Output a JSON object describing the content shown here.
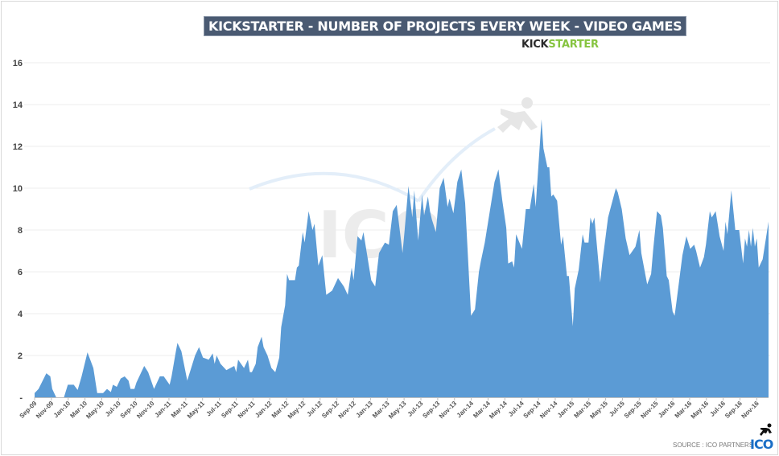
{
  "title": "KICKSTARTER - NUMBER OF PROJECTS EVERY WEEK - VIDEO GAMES",
  "logo": {
    "part1": "KICK",
    "part2": "STARTER"
  },
  "source": "SOURCE : ICO PARTNERS",
  "source_logo": "ICO",
  "watermark": "ICO",
  "colors": {
    "area": "#5b9bd5",
    "title_bg": "#4a5a72",
    "kick_green": "#86c440",
    "ico_blue": "#1b6fc6"
  },
  "chart_data": {
    "type": "area",
    "title": "KICKSTARTER - NUMBER OF PROJECTS EVERY WEEK - VIDEO GAMES",
    "xlabel": "",
    "ylabel": "",
    "x_unit": "weeks since Sep-09",
    "ylim": [
      0,
      16
    ],
    "xlim": [
      0,
      375
    ],
    "y_ticks": [
      {
        "v": 0,
        "label": "-"
      },
      {
        "v": 2,
        "label": "2"
      },
      {
        "v": 4,
        "label": "4"
      },
      {
        "v": 6,
        "label": "6"
      },
      {
        "v": 8,
        "label": "8"
      },
      {
        "v": 10,
        "label": "10"
      },
      {
        "v": 12,
        "label": "12"
      },
      {
        "v": 14,
        "label": "14"
      },
      {
        "v": 16,
        "label": "16"
      }
    ],
    "x_tick_labels": [
      "Sep-09",
      "Nov-09",
      "Jan-10",
      "Mar-10",
      "May-10",
      "Jul-10",
      "Sep-10",
      "Nov-10",
      "Jan-11",
      "Mar-11",
      "May-11",
      "Jul-11",
      "Sep-11",
      "Nov-11",
      "Jan-12",
      "Mar-12",
      "May-12",
      "Jul-12",
      "Sep-12",
      "Nov-12",
      "Jan-13",
      "Mar-13",
      "May-13",
      "Jul-13",
      "Sep-13",
      "Nov-13",
      "Jan-14",
      "Mar-14",
      "May-14",
      "Jul-14",
      "Sep-14",
      "Nov-14",
      "Jan-15",
      "Mar-15",
      "May-15",
      "Jul-15",
      "Sep-15",
      "Nov-15",
      "Jan-16",
      "Mar-16",
      "May-16",
      "Jul-16",
      "Sep-16",
      "Nov-16"
    ],
    "grid": true,
    "legend": "none",
    "series": [
      {
        "name": "Video game projects per week",
        "points": [
          [
            0,
            0.2
          ],
          [
            2,
            0.4
          ],
          [
            6,
            1.15
          ],
          [
            8,
            1.0
          ],
          [
            9,
            0.4
          ],
          [
            11,
            0
          ],
          [
            15,
            0
          ],
          [
            17,
            0.6
          ],
          [
            20,
            0.6
          ],
          [
            22,
            0.35
          ],
          [
            24,
            1.0
          ],
          [
            27,
            2.15
          ],
          [
            30,
            1.4
          ],
          [
            32,
            0.2
          ],
          [
            35,
            0.2
          ],
          [
            37,
            0.4
          ],
          [
            39,
            0.25
          ],
          [
            40,
            0.6
          ],
          [
            42,
            0.5
          ],
          [
            44,
            0.9
          ],
          [
            46,
            1.0
          ],
          [
            48,
            0.8
          ],
          [
            49,
            0.4
          ],
          [
            51,
            0.4
          ],
          [
            52,
            0.7
          ],
          [
            56,
            1.5
          ],
          [
            58,
            1.2
          ],
          [
            61,
            0.4
          ],
          [
            64,
            1.0
          ],
          [
            66,
            1.0
          ],
          [
            69,
            0.6
          ],
          [
            70,
            1.0
          ],
          [
            72,
            2.1
          ],
          [
            73,
            2.6
          ],
          [
            75,
            2.2
          ],
          [
            78,
            0.8
          ],
          [
            82,
            2.0
          ],
          [
            84,
            2.4
          ],
          [
            86,
            1.9
          ],
          [
            89,
            1.8
          ],
          [
            91,
            2.1
          ],
          [
            92,
            1.6
          ],
          [
            93,
            2.0
          ],
          [
            95,
            1.6
          ],
          [
            98,
            1.3
          ],
          [
            100,
            1.4
          ],
          [
            102,
            1.5
          ],
          [
            103,
            1.2
          ],
          [
            104,
            1.8
          ],
          [
            107,
            1.4
          ],
          [
            109,
            1.8
          ],
          [
            110,
            1.2
          ],
          [
            111,
            1.2
          ],
          [
            113,
            1.6
          ],
          [
            114,
            2.4
          ],
          [
            116,
            2.9
          ],
          [
            117,
            2.4
          ],
          [
            119,
            2.0
          ],
          [
            121,
            1.4
          ],
          [
            123,
            1.2
          ],
          [
            125,
            1.9
          ],
          [
            126,
            3.35
          ],
          [
            128,
            4.4
          ],
          [
            129,
            5.9
          ],
          [
            130,
            5.6
          ],
          [
            133,
            5.6
          ],
          [
            134,
            6.2
          ],
          [
            135,
            6.3
          ],
          [
            137,
            7.9
          ],
          [
            138,
            7.4
          ],
          [
            140,
            8.9
          ],
          [
            142,
            8.0
          ],
          [
            143,
            8.3
          ],
          [
            145,
            6.3
          ],
          [
            147,
            6.8
          ],
          [
            149,
            4.9
          ],
          [
            152,
            5.1
          ],
          [
            155,
            5.7
          ],
          [
            158,
            5.3
          ],
          [
            160,
            4.9
          ],
          [
            162,
            6.2
          ],
          [
            163,
            5.6
          ],
          [
            165,
            7.7
          ],
          [
            167,
            7.5
          ],
          [
            168,
            7.9
          ],
          [
            172,
            5.6
          ],
          [
            174,
            5.3
          ],
          [
            176,
            6.9
          ],
          [
            179,
            7.4
          ],
          [
            181,
            7.3
          ],
          [
            183,
            8.9
          ],
          [
            185,
            9.2
          ],
          [
            188,
            6.9
          ],
          [
            189,
            7.9
          ],
          [
            191,
            10.1
          ],
          [
            193,
            8.6
          ],
          [
            194,
            9.9
          ],
          [
            196,
            7.5
          ],
          [
            198,
            9.7
          ],
          [
            199,
            8.7
          ],
          [
            201,
            9.6
          ],
          [
            202,
            8.9
          ],
          [
            203,
            8.5
          ],
          [
            205,
            7.9
          ],
          [
            207,
            10.0
          ],
          [
            209,
            10.5
          ],
          [
            211,
            9.1
          ],
          [
            212,
            9.5
          ],
          [
            214,
            8.8
          ],
          [
            216,
            10.3
          ],
          [
            218,
            10.9
          ],
          [
            220,
            9.3
          ],
          [
            223,
            3.9
          ],
          [
            225,
            4.2
          ],
          [
            227,
            6.0
          ],
          [
            228,
            6.5
          ],
          [
            230,
            7.4
          ],
          [
            235,
            10.3
          ],
          [
            237,
            10.9
          ],
          [
            239,
            9.4
          ],
          [
            241,
            8.1
          ],
          [
            242,
            6.4
          ],
          [
            244,
            6.5
          ],
          [
            245,
            6.2
          ],
          [
            246,
            7.8
          ],
          [
            249,
            7.1
          ],
          [
            251,
            9.0
          ],
          [
            253,
            9.0
          ],
          [
            255,
            10.2
          ],
          [
            256,
            9.1
          ],
          [
            259,
            13.3
          ],
          [
            260,
            11.9
          ],
          [
            262,
            11.0
          ],
          [
            263,
            11.0
          ],
          [
            264,
            9.6
          ],
          [
            265,
            9.7
          ],
          [
            267,
            9.4
          ],
          [
            269,
            7.3
          ],
          [
            270,
            7.7
          ],
          [
            272,
            5.8
          ],
          [
            273,
            5.8
          ],
          [
            275,
            3.4
          ],
          [
            276,
            5.2
          ],
          [
            278,
            6.1
          ],
          [
            280,
            7.8
          ],
          [
            281,
            7.4
          ],
          [
            283,
            7.4
          ],
          [
            284,
            8.6
          ],
          [
            285,
            8.3
          ],
          [
            286,
            8.6
          ],
          [
            289,
            5.5
          ],
          [
            290,
            6.4
          ],
          [
            293,
            8.6
          ],
          [
            295,
            9.3
          ],
          [
            297,
            10.0
          ],
          [
            298,
            9.8
          ],
          [
            300,
            9.0
          ],
          [
            302,
            7.6
          ],
          [
            304,
            6.8
          ],
          [
            307,
            7.2
          ],
          [
            309,
            8.0
          ],
          [
            310,
            6.9
          ],
          [
            313,
            5.4
          ],
          [
            315,
            5.9
          ],
          [
            316,
            7.0
          ],
          [
            318,
            8.9
          ],
          [
            320,
            8.7
          ],
          [
            321,
            8.1
          ],
          [
            323,
            5.8
          ],
          [
            324,
            5.6
          ],
          [
            326,
            4.1
          ],
          [
            327,
            3.9
          ],
          [
            328,
            4.6
          ],
          [
            331,
            6.8
          ],
          [
            333,
            7.7
          ],
          [
            335,
            7.1
          ],
          [
            337,
            7.3
          ],
          [
            338,
            7.0
          ],
          [
            340,
            6.2
          ],
          [
            342,
            6.7
          ],
          [
            343,
            7.3
          ],
          [
            345,
            8.9
          ],
          [
            346,
            8.6
          ],
          [
            348,
            8.9
          ],
          [
            350,
            7.7
          ],
          [
            352,
            7.0
          ],
          [
            353,
            8.4
          ],
          [
            354,
            7.8
          ],
          [
            356,
            9.9
          ],
          [
            358,
            8.0
          ],
          [
            360,
            8.0
          ],
          [
            362,
            6.4
          ],
          [
            363,
            7.6
          ],
          [
            364,
            7.2
          ],
          [
            365,
            8.0
          ],
          [
            366,
            7.2
          ],
          [
            367,
            8.1
          ],
          [
            368,
            7.2
          ],
          [
            369,
            7.6
          ],
          [
            370,
            6.2
          ],
          [
            372,
            6.6
          ],
          [
            375,
            8.4
          ]
        ]
      }
    ]
  }
}
